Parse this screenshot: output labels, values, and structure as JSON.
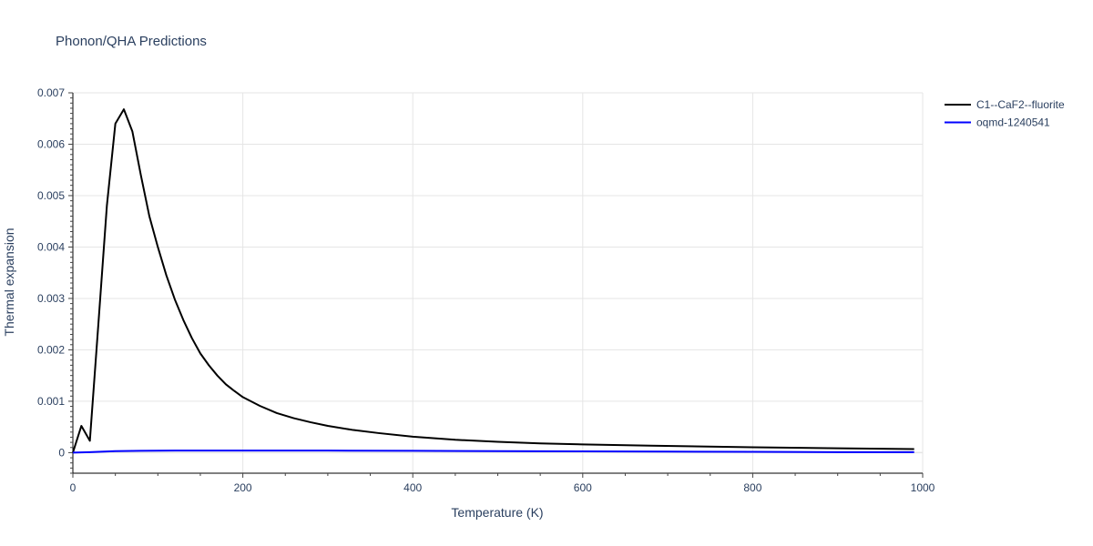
{
  "chart_data": {
    "type": "line",
    "title": "Phonon/QHA Predictions",
    "xlabel": "Temperature (K)",
    "ylabel": "Thermal expansion",
    "xlim": [
      0,
      1000
    ],
    "ylim": [
      -0.0004,
      0.007
    ],
    "x_ticks": [
      0,
      200,
      400,
      600,
      800,
      1000
    ],
    "x_tick_labels": [
      "0",
      "200",
      "400",
      "600",
      "800",
      "1000"
    ],
    "y_ticks": [
      0,
      0.001,
      0.002,
      0.003,
      0.004,
      0.005,
      0.006,
      0.007
    ],
    "y_tick_labels": [
      "0",
      "0.001",
      "0.002",
      "0.003",
      "0.004",
      "0.005",
      "0.006",
      "0.007"
    ],
    "grid": true,
    "legend_position": "top-right, outside plot",
    "series": [
      {
        "name": "C1--CaF2--fluorite",
        "color": "#000000",
        "x": [
          0,
          10,
          20,
          30,
          40,
          50,
          60,
          70,
          80,
          90,
          100,
          110,
          120,
          130,
          140,
          150,
          160,
          170,
          180,
          190,
          200,
          220,
          240,
          260,
          280,
          300,
          330,
          360,
          400,
          450,
          500,
          550,
          600,
          680,
          800,
          900,
          990
        ],
        "y": [
          0.0,
          0.00052,
          0.00023,
          0.0025,
          0.0048,
          0.0064,
          0.00668,
          0.00625,
          0.0054,
          0.0046,
          0.004,
          0.00345,
          0.00298,
          0.00258,
          0.00223,
          0.00193,
          0.0017,
          0.0015,
          0.00133,
          0.0012,
          0.00108,
          0.00091,
          0.00077,
          0.00067,
          0.00059,
          0.00052,
          0.00044,
          0.00038,
          0.00031,
          0.00025,
          0.00021,
          0.00018,
          0.00016,
          0.000135,
          0.000105,
          8.5e-05,
          7e-05
        ]
      },
      {
        "name": "oqmd-1240541",
        "color": "#0000ff",
        "x": [
          0,
          20,
          50,
          80,
          120,
          200,
          300,
          400,
          500,
          600,
          700,
          800,
          900,
          990
        ],
        "y": [
          0.0,
          1e-05,
          3e-05,
          3.5e-05,
          4e-05,
          4e-05,
          4e-05,
          3.5e-05,
          3e-05,
          2.5e-05,
          2e-05,
          1.5e-05,
          1e-05,
          1e-05
        ]
      }
    ]
  }
}
